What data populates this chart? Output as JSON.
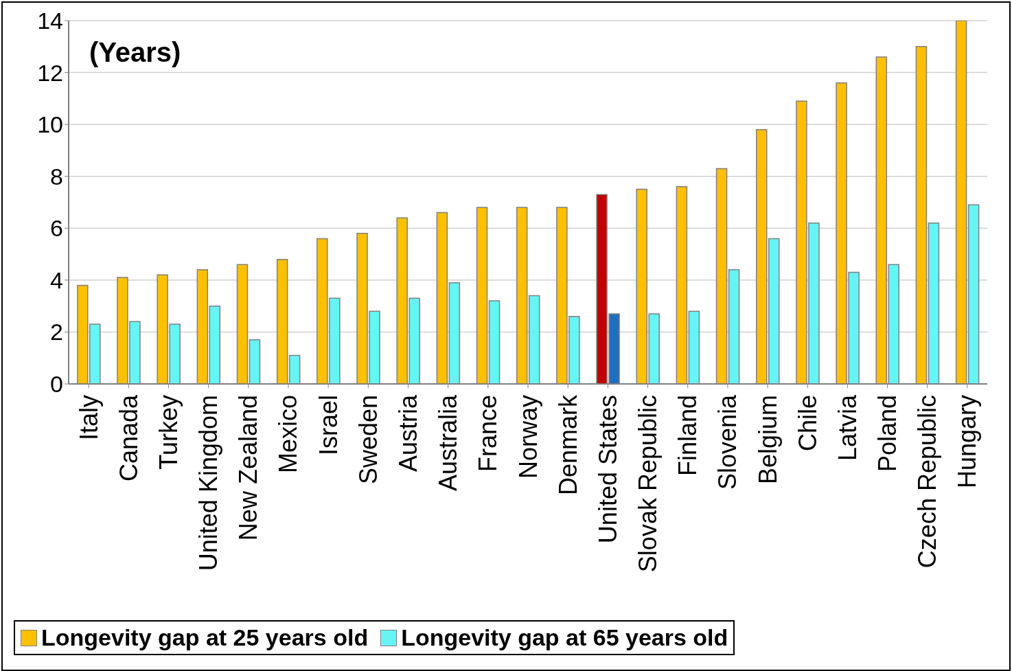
{
  "chart_data": {
    "type": "bar",
    "categories": [
      "Italy",
      "Canada",
      "Turkey",
      "United Kingdom",
      "New Zealand",
      "Mexico",
      "Israel",
      "Sweden",
      "Austria",
      "Australia",
      "France",
      "Norway",
      "Denmark",
      "United States",
      "Slovak Republic",
      "Finland",
      "Slovenia",
      "Belgium",
      "Chile",
      "Latvia",
      "Poland",
      "Czech Republic",
      "Hungary"
    ],
    "series": [
      {
        "name": "Longevity gap at 25 years old",
        "color": "#ffc000",
        "colors": [
          "#ffc000",
          "#ffc000",
          "#ffc000",
          "#ffc000",
          "#ffc000",
          "#ffc000",
          "#ffc000",
          "#ffc000",
          "#ffc000",
          "#ffc000",
          "#ffc000",
          "#ffc000",
          "#ffc000",
          "#c00000",
          "#ffc000",
          "#ffc000",
          "#ffc000",
          "#ffc000",
          "#ffc000",
          "#ffc000",
          "#ffc000",
          "#ffc000",
          "#ffc000"
        ],
        "values": [
          3.8,
          4.1,
          4.2,
          4.4,
          4.6,
          4.8,
          5.6,
          5.8,
          6.4,
          6.6,
          6.8,
          6.8,
          6.8,
          7.3,
          7.5,
          7.6,
          8.3,
          9.8,
          10.9,
          11.6,
          12.6,
          13.0,
          14.0
        ]
      },
      {
        "name": "Longevity gap at 65 years old",
        "color": "#66f5f5",
        "colors": [
          "#66f5f5",
          "#66f5f5",
          "#66f5f5",
          "#66f5f5",
          "#66f5f5",
          "#66f5f5",
          "#66f5f5",
          "#66f5f5",
          "#66f5f5",
          "#66f5f5",
          "#66f5f5",
          "#66f5f5",
          "#66f5f5",
          "#1f6fbf",
          "#66f5f5",
          "#66f5f5",
          "#66f5f5",
          "#66f5f5",
          "#66f5f5",
          "#66f5f5",
          "#66f5f5",
          "#66f5f5",
          "#66f5f5"
        ],
        "values": [
          2.3,
          2.4,
          2.3,
          3.0,
          1.7,
          1.1,
          3.3,
          2.8,
          3.3,
          3.9,
          3.2,
          3.4,
          2.6,
          2.7,
          2.7,
          2.8,
          4.4,
          5.6,
          6.2,
          4.3,
          4.6,
          6.2,
          6.9
        ]
      }
    ],
    "ylim": [
      0,
      14
    ],
    "yticks": [
      0,
      2,
      4,
      6,
      8,
      10,
      12,
      14
    ],
    "grid": "y",
    "legend": "bottom",
    "annotations": [
      "(Years)"
    ]
  }
}
